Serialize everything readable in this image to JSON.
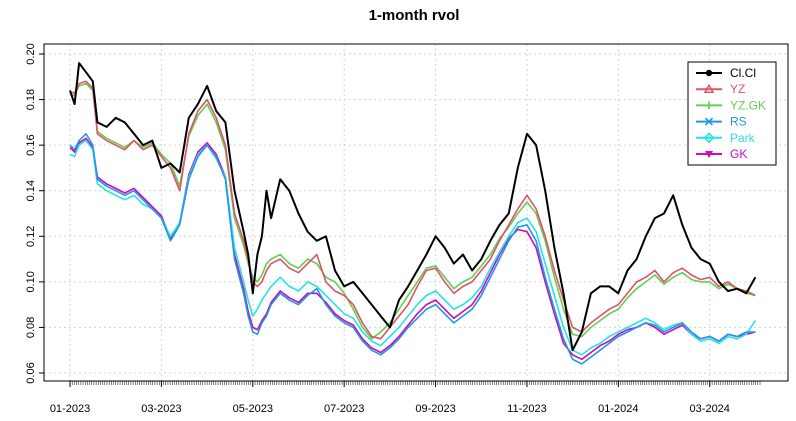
{
  "chart_data": {
    "type": "line",
    "title": "1-month rvol",
    "xlabel": "",
    "ylabel": "",
    "ylim": [
      0.06,
      0.2
    ],
    "yticks": [
      0.06,
      0.08,
      0.1,
      0.12,
      0.14,
      0.16,
      0.18,
      0.2
    ],
    "ytick_labels": [
      "0.06",
      "0.08",
      "0.10",
      "0.12",
      "0.14",
      "0.16",
      "0.18",
      "0.20"
    ],
    "xlim": [
      0,
      15.1
    ],
    "xtick_labels": [
      {
        "pos": 0,
        "label": "01-2023"
      },
      {
        "pos": 2,
        "label": "03-2023"
      },
      {
        "pos": 4,
        "label": "05-2023"
      },
      {
        "pos": 6,
        "label": "07-2023"
      },
      {
        "pos": 8,
        "label": "09-2023"
      },
      {
        "pos": 10,
        "label": "11-2023"
      },
      {
        "pos": 12,
        "label": "01-2024"
      },
      {
        "pos": 14,
        "label": "03-2024"
      }
    ],
    "grid": true,
    "legend_position": "top-right",
    "x": [
      0,
      0.1,
      0.2,
      0.35,
      0.5,
      0.6,
      0.8,
      1.0,
      1.2,
      1.4,
      1.6,
      1.8,
      2.0,
      2.2,
      2.4,
      2.6,
      2.8,
      3.0,
      3.2,
      3.4,
      3.6,
      3.8,
      3.9,
      4.0,
      4.1,
      4.2,
      4.3,
      4.4,
      4.6,
      4.8,
      5.0,
      5.2,
      5.4,
      5.6,
      5.8,
      6.0,
      6.2,
      6.4,
      6.6,
      6.8,
      7.0,
      7.2,
      7.4,
      7.6,
      7.8,
      8.0,
      8.2,
      8.4,
      8.6,
      8.8,
      9.0,
      9.2,
      9.4,
      9.6,
      9.8,
      10.0,
      10.2,
      10.4,
      10.6,
      10.8,
      11.0,
      11.2,
      11.4,
      11.6,
      11.8,
      12.0,
      12.2,
      12.4,
      12.6,
      12.8,
      13.0,
      13.2,
      13.4,
      13.6,
      13.8,
      14.0,
      14.2,
      14.4,
      14.6,
      14.8,
      15.0
    ],
    "series": [
      {
        "name": "Cl.Cl",
        "color": "#000000",
        "values": [
          0.184,
          0.178,
          0.196,
          0.192,
          0.188,
          0.17,
          0.168,
          0.172,
          0.17,
          0.165,
          0.16,
          0.162,
          0.15,
          0.152,
          0.148,
          0.172,
          0.178,
          0.186,
          0.175,
          0.17,
          0.14,
          0.122,
          0.112,
          0.095,
          0.112,
          0.12,
          0.14,
          0.128,
          0.145,
          0.14,
          0.13,
          0.122,
          0.118,
          0.12,
          0.105,
          0.098,
          0.1,
          0.095,
          0.09,
          0.085,
          0.08,
          0.092,
          0.098,
          0.105,
          0.112,
          0.12,
          0.115,
          0.108,
          0.112,
          0.105,
          0.11,
          0.118,
          0.125,
          0.13,
          0.15,
          0.165,
          0.16,
          0.14,
          0.115,
          0.095,
          0.07,
          0.078,
          0.095,
          0.098,
          0.098,
          0.095,
          0.105,
          0.11,
          0.12,
          0.128,
          0.13,
          0.138,
          0.125,
          0.115,
          0.11,
          0.108,
          0.1,
          0.096,
          0.097,
          0.095,
          0.102
        ]
      },
      {
        "name": "YZ",
        "color": "#DF536B",
        "values": [
          0.183,
          0.183,
          0.187,
          0.188,
          0.185,
          0.165,
          0.162,
          0.16,
          0.158,
          0.162,
          0.158,
          0.16,
          0.155,
          0.15,
          0.14,
          0.165,
          0.175,
          0.18,
          0.172,
          0.16,
          0.13,
          0.118,
          0.11,
          0.1,
          0.098,
          0.1,
          0.105,
          0.108,
          0.11,
          0.106,
          0.104,
          0.108,
          0.112,
          0.1,
          0.096,
          0.094,
          0.09,
          0.082,
          0.076,
          0.075,
          0.08,
          0.085,
          0.09,
          0.098,
          0.105,
          0.106,
          0.1,
          0.095,
          0.098,
          0.1,
          0.105,
          0.11,
          0.118,
          0.125,
          0.132,
          0.138,
          0.132,
          0.12,
          0.105,
          0.092,
          0.08,
          0.078,
          0.082,
          0.085,
          0.088,
          0.09,
          0.095,
          0.1,
          0.102,
          0.105,
          0.1,
          0.104,
          0.106,
          0.103,
          0.101,
          0.102,
          0.098,
          0.1,
          0.097,
          0.096,
          0.094
        ]
      },
      {
        "name": "YZ.GK",
        "color": "#61D04F",
        "values": [
          0.182,
          0.182,
          0.186,
          0.187,
          0.184,
          0.166,
          0.163,
          0.161,
          0.159,
          0.162,
          0.159,
          0.161,
          0.156,
          0.152,
          0.142,
          0.164,
          0.173,
          0.178,
          0.17,
          0.158,
          0.128,
          0.116,
          0.108,
          0.102,
          0.1,
          0.103,
          0.108,
          0.11,
          0.112,
          0.108,
          0.106,
          0.11,
          0.108,
          0.102,
          0.1,
          0.095,
          0.088,
          0.08,
          0.075,
          0.078,
          0.082,
          0.088,
          0.094,
          0.1,
          0.106,
          0.107,
          0.102,
          0.097,
          0.1,
          0.102,
          0.107,
          0.112,
          0.119,
          0.124,
          0.13,
          0.135,
          0.13,
          0.118,
          0.102,
          0.088,
          0.077,
          0.076,
          0.08,
          0.083,
          0.086,
          0.088,
          0.093,
          0.097,
          0.1,
          0.103,
          0.099,
          0.102,
          0.104,
          0.101,
          0.1,
          0.1,
          0.097,
          0.099,
          0.097,
          0.095,
          0.094
        ]
      },
      {
        "name": "RS",
        "color": "#2297E6",
        "values": [
          0.16,
          0.158,
          0.162,
          0.165,
          0.16,
          0.145,
          0.142,
          0.14,
          0.138,
          0.14,
          0.136,
          0.132,
          0.128,
          0.118,
          0.125,
          0.145,
          0.155,
          0.16,
          0.155,
          0.145,
          0.11,
          0.095,
          0.085,
          0.078,
          0.077,
          0.082,
          0.085,
          0.09,
          0.095,
          0.092,
          0.09,
          0.094,
          0.097,
          0.09,
          0.085,
          0.082,
          0.08,
          0.074,
          0.07,
          0.068,
          0.071,
          0.075,
          0.08,
          0.084,
          0.088,
          0.09,
          0.086,
          0.082,
          0.085,
          0.088,
          0.094,
          0.102,
          0.11,
          0.118,
          0.124,
          0.125,
          0.118,
          0.102,
          0.088,
          0.075,
          0.066,
          0.064,
          0.067,
          0.07,
          0.073,
          0.076,
          0.078,
          0.08,
          0.082,
          0.081,
          0.078,
          0.08,
          0.082,
          0.078,
          0.075,
          0.076,
          0.074,
          0.077,
          0.076,
          0.078,
          0.078
        ]
      },
      {
        "name": "Park",
        "color": "#28E2E5",
        "values": [
          0.156,
          0.155,
          0.16,
          0.162,
          0.158,
          0.143,
          0.14,
          0.138,
          0.136,
          0.138,
          0.134,
          0.132,
          0.128,
          0.12,
          0.126,
          0.146,
          0.156,
          0.16,
          0.154,
          0.146,
          0.115,
          0.1,
          0.092,
          0.085,
          0.088,
          0.092,
          0.095,
          0.098,
          0.102,
          0.098,
          0.096,
          0.1,
          0.098,
          0.094,
          0.09,
          0.086,
          0.084,
          0.078,
          0.074,
          0.072,
          0.076,
          0.08,
          0.085,
          0.09,
          0.094,
          0.096,
          0.092,
          0.088,
          0.09,
          0.093,
          0.098,
          0.106,
          0.113,
          0.12,
          0.126,
          0.128,
          0.122,
          0.108,
          0.094,
          0.08,
          0.07,
          0.068,
          0.071,
          0.073,
          0.076,
          0.078,
          0.08,
          0.082,
          0.084,
          0.082,
          0.079,
          0.081,
          0.082,
          0.077,
          0.074,
          0.075,
          0.073,
          0.076,
          0.075,
          0.077,
          0.083
        ]
      },
      {
        "name": "GK",
        "color": "#CD0BBC",
        "values": [
          0.159,
          0.157,
          0.161,
          0.163,
          0.159,
          0.146,
          0.143,
          0.141,
          0.139,
          0.141,
          0.137,
          0.133,
          0.129,
          0.119,
          0.126,
          0.147,
          0.157,
          0.161,
          0.156,
          0.146,
          0.112,
          0.097,
          0.087,
          0.08,
          0.079,
          0.083,
          0.086,
          0.091,
          0.096,
          0.093,
          0.091,
          0.095,
          0.095,
          0.091,
          0.086,
          0.083,
          0.081,
          0.075,
          0.071,
          0.069,
          0.072,
          0.076,
          0.081,
          0.086,
          0.09,
          0.092,
          0.088,
          0.084,
          0.087,
          0.09,
          0.096,
          0.104,
          0.112,
          0.119,
          0.123,
          0.122,
          0.115,
          0.1,
          0.086,
          0.073,
          0.068,
          0.066,
          0.069,
          0.072,
          0.074,
          0.077,
          0.079,
          0.08,
          0.082,
          0.08,
          0.077,
          0.079,
          0.081,
          0.077,
          0.075,
          0.076,
          0.074,
          0.077,
          0.076,
          0.077,
          0.078
        ]
      }
    ],
    "legend": [
      {
        "label": "Cl.Cl",
        "marker": "circle",
        "color": "#000000"
      },
      {
        "label": "YZ",
        "marker": "triangle",
        "color": "#DF536B"
      },
      {
        "label": "YZ.GK",
        "marker": "plus",
        "color": "#61D04F"
      },
      {
        "label": "RS",
        "marker": "cross",
        "color": "#2297E6"
      },
      {
        "label": "Park",
        "marker": "diamond",
        "color": "#28E2E5"
      },
      {
        "label": "GK",
        "marker": "triangle-down",
        "color": "#CD0BBC"
      }
    ]
  }
}
